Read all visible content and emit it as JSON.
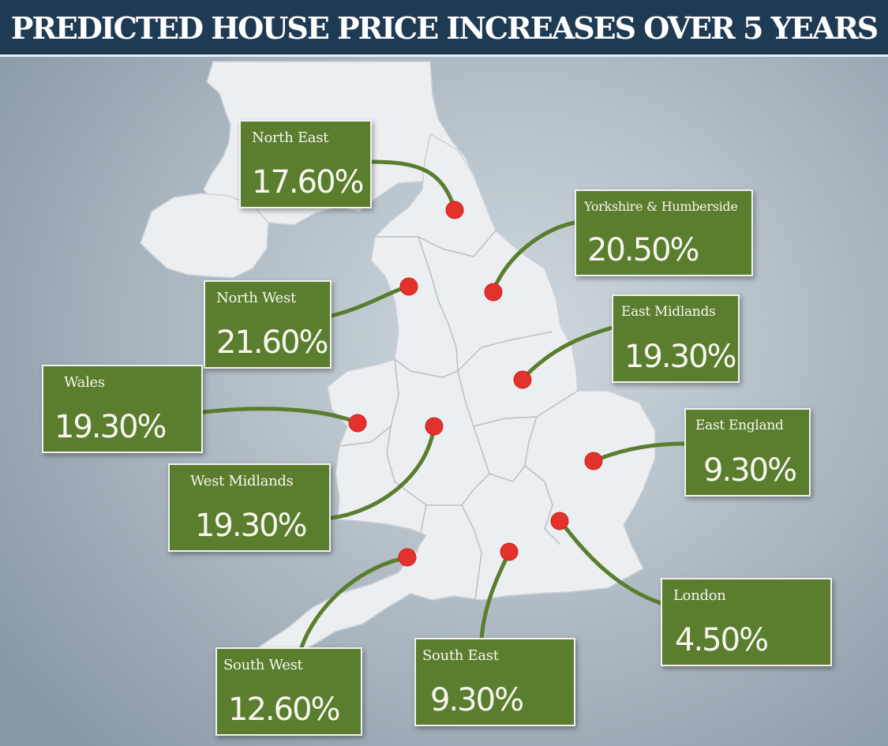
{
  "title": "PREDICTED HOUSE PRICE INCREASES OVER 5 YEARS",
  "colors": {
    "title_bg": "#1f3b54",
    "box_bg": "#5a7d2e",
    "connector": "#5a7d2e",
    "marker": "#e3322b",
    "land": "#eceff1"
  },
  "regions": [
    {
      "id": "north-east",
      "name": "North East",
      "value": "17.60%"
    },
    {
      "id": "yorkshire-humberside",
      "name": "Yorkshire & Humberside",
      "value": "20.50%"
    },
    {
      "id": "north-west",
      "name": "North West",
      "value": "21.60%"
    },
    {
      "id": "east-midlands",
      "name": "East Midlands",
      "value": "19.30%"
    },
    {
      "id": "wales",
      "name": "Wales",
      "value": "19.30%"
    },
    {
      "id": "east-england",
      "name": "East England",
      "value": "9.30%"
    },
    {
      "id": "west-midlands",
      "name": "West Midlands",
      "value": "19.30%"
    },
    {
      "id": "london",
      "name": "London",
      "value": "4.50%"
    },
    {
      "id": "south-west",
      "name": "South West",
      "value": "12.60%"
    },
    {
      "id": "south-east",
      "name": "South East",
      "value": "9.30%"
    }
  ]
}
